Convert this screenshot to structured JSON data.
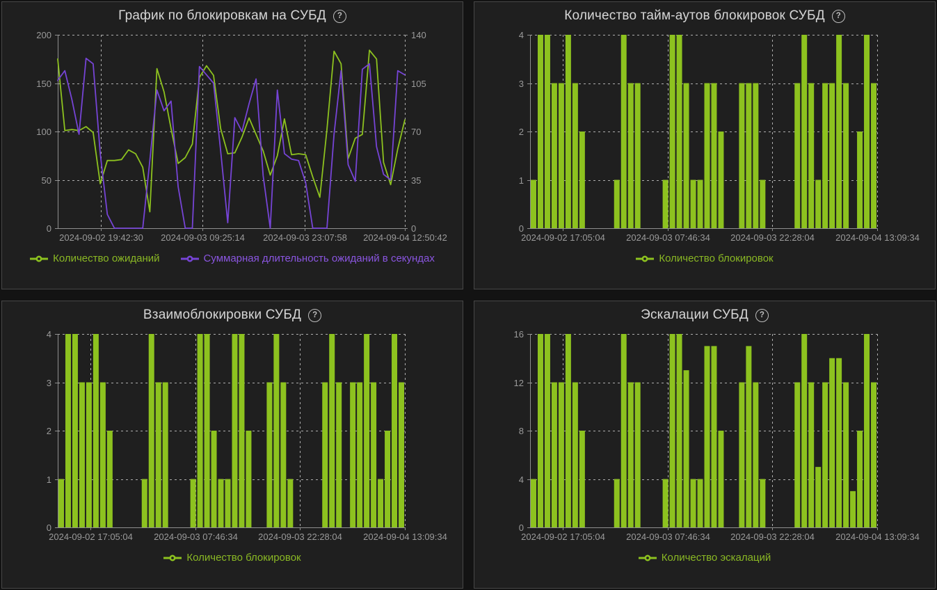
{
  "ui": {
    "help": "?"
  },
  "colors": {
    "page_bg": "#131313",
    "panel_bg": "#1f1f1f",
    "panel_border": "#474747",
    "title": "#d6d6d6",
    "axis_line": "#8f8f8f",
    "axis_text": "#9a9a9a",
    "grid_dash": "#c9c9c9",
    "series_green": "#8dc21f",
    "series_purple": "#7644d6",
    "legend_green_text": "#8ab824",
    "legend_purple_text": "#8a55e0"
  },
  "panels": [
    {
      "title": "График по блокировкам на СУБД",
      "legend": [
        {
          "label": "Количество ожиданий",
          "color": "#8ab824",
          "marker_color": "#8dc21f"
        },
        {
          "label": "Суммарная длительность ожиданий в секундах",
          "color": "#8a55e0",
          "marker_color": "#7644d6"
        }
      ]
    },
    {
      "title": "Количество тайм-аутов блокировок СУБД",
      "legend": [
        {
          "label": "Количество блокировок",
          "color": "#8ab824",
          "marker_color": "#8dc21f"
        }
      ]
    },
    {
      "title": "Взаимоблокировки СУБД",
      "legend": [
        {
          "label": "Количество блокировок",
          "color": "#8ab824",
          "marker_color": "#8dc21f"
        }
      ]
    },
    {
      "title": "Эскалации СУБД",
      "legend": [
        {
          "label": "Количество эскалаций",
          "color": "#8ab824",
          "marker_color": "#8dc21f"
        }
      ]
    }
  ],
  "chart_data": [
    {
      "type": "line",
      "title": "График по блокировкам на СУБД",
      "x_tick_labels": [
        "2024-09-02 19:42:30",
        "2024-09-03 09:25:14",
        "2024-09-03 23:07:58",
        "2024-09-04 12:50:42"
      ],
      "ylim_left": [
        0,
        200
      ],
      "yticks_left": [
        0,
        50,
        100,
        150,
        200
      ],
      "ylim_right": [
        0,
        140
      ],
      "yticks_right": [
        0,
        35,
        70,
        105,
        140
      ],
      "grid": true,
      "legend_position": "bottom",
      "series": [
        {
          "name": "Количество ожиданий",
          "axis": "left",
          "color": "#8dc21f",
          "values": [
            175,
            101,
            102,
            101,
            105,
            99,
            46,
            70,
            70,
            71,
            81,
            77,
            63,
            17,
            165,
            141,
            103,
            67,
            73,
            87,
            156,
            168,
            158,
            103,
            77,
            78,
            94,
            114,
            97,
            80,
            55,
            75,
            113,
            76,
            77,
            76,
            53,
            32,
            102,
            183,
            170,
            72,
            93,
            97,
            184,
            175,
            68,
            45,
            82,
            112
          ]
        },
        {
          "name": "Суммарная длительность ожиданий в секундах",
          "axis": "right",
          "color": "#7644d6",
          "values": [
            107,
            114,
            93,
            68,
            123,
            119,
            54,
            10,
            0,
            0,
            0,
            0,
            0,
            49,
            100,
            85,
            92,
            30,
            0,
            0,
            117,
            111,
            105,
            56,
            4,
            80,
            70,
            90,
            108,
            38,
            0,
            100,
            54,
            50,
            49,
            33,
            0,
            0,
            0,
            68,
            114,
            46,
            34,
            115,
            119,
            59,
            39,
            35,
            114,
            111
          ]
        }
      ]
    },
    {
      "type": "bar",
      "title": "Количество тайм-аутов блокировок СУБД",
      "series_name": "Количество блокировок",
      "color": "#8dc21f",
      "x_tick_labels": [
        "2024-09-02 17:05:04",
        "2024-09-03 07:46:34",
        "2024-09-03 22:28:04",
        "2024-09-04 13:09:34"
      ],
      "ylim": [
        0,
        4
      ],
      "yticks": [
        0,
        1,
        2,
        3,
        4
      ],
      "grid": true,
      "legend_position": "bottom",
      "values": [
        1,
        4,
        4,
        3,
        3,
        4,
        3,
        2,
        null,
        null,
        null,
        null,
        1,
        4,
        3,
        3,
        null,
        null,
        null,
        1,
        4,
        4,
        3,
        1,
        1,
        3,
        3,
        2,
        null,
        null,
        3,
        3,
        3,
        1,
        null,
        null,
        null,
        null,
        3,
        4,
        3,
        1,
        3,
        3,
        4,
        3,
        null,
        2,
        4,
        3
      ]
    },
    {
      "type": "bar",
      "title": "Взаимоблокировки СУБД",
      "series_name": "Количество блокировок",
      "color": "#8dc21f",
      "x_tick_labels": [
        "2024-09-02 17:05:04",
        "2024-09-03 07:46:34",
        "2024-09-03 22:28:04",
        "2024-09-04 13:09:34"
      ],
      "ylim": [
        0,
        4
      ],
      "yticks": [
        0,
        1,
        2,
        3,
        4
      ],
      "grid": true,
      "legend_position": "bottom",
      "values": [
        1,
        4,
        4,
        3,
        3,
        4,
        3,
        2,
        null,
        null,
        null,
        null,
        1,
        4,
        3,
        3,
        null,
        null,
        null,
        1,
        4,
        4,
        2,
        1,
        1,
        4,
        4,
        2,
        null,
        null,
        3,
        4,
        3,
        1,
        null,
        null,
        null,
        null,
        3,
        4,
        3,
        null,
        3,
        3,
        4,
        3,
        1,
        2,
        4,
        3
      ]
    },
    {
      "type": "bar",
      "title": "Эскалации СУБД",
      "series_name": "Количество эскалаций",
      "color": "#8dc21f",
      "x_tick_labels": [
        "2024-09-02 17:05:04",
        "2024-09-03 07:46:34",
        "2024-09-03 22:28:04",
        "2024-09-04 13:09:34"
      ],
      "ylim": [
        0,
        16
      ],
      "yticks": [
        0,
        4,
        8,
        12,
        16
      ],
      "grid": true,
      "legend_position": "bottom",
      "values": [
        4,
        16,
        16,
        12,
        12,
        16,
        12,
        8,
        null,
        null,
        null,
        null,
        4,
        16,
        12,
        12,
        null,
        null,
        null,
        4,
        16,
        16,
        13,
        4,
        4,
        15,
        15,
        8,
        null,
        null,
        12,
        15,
        12,
        4,
        null,
        null,
        null,
        null,
        12,
        16,
        12,
        5,
        12,
        14,
        14,
        12,
        3,
        8,
        16,
        12
      ]
    }
  ]
}
